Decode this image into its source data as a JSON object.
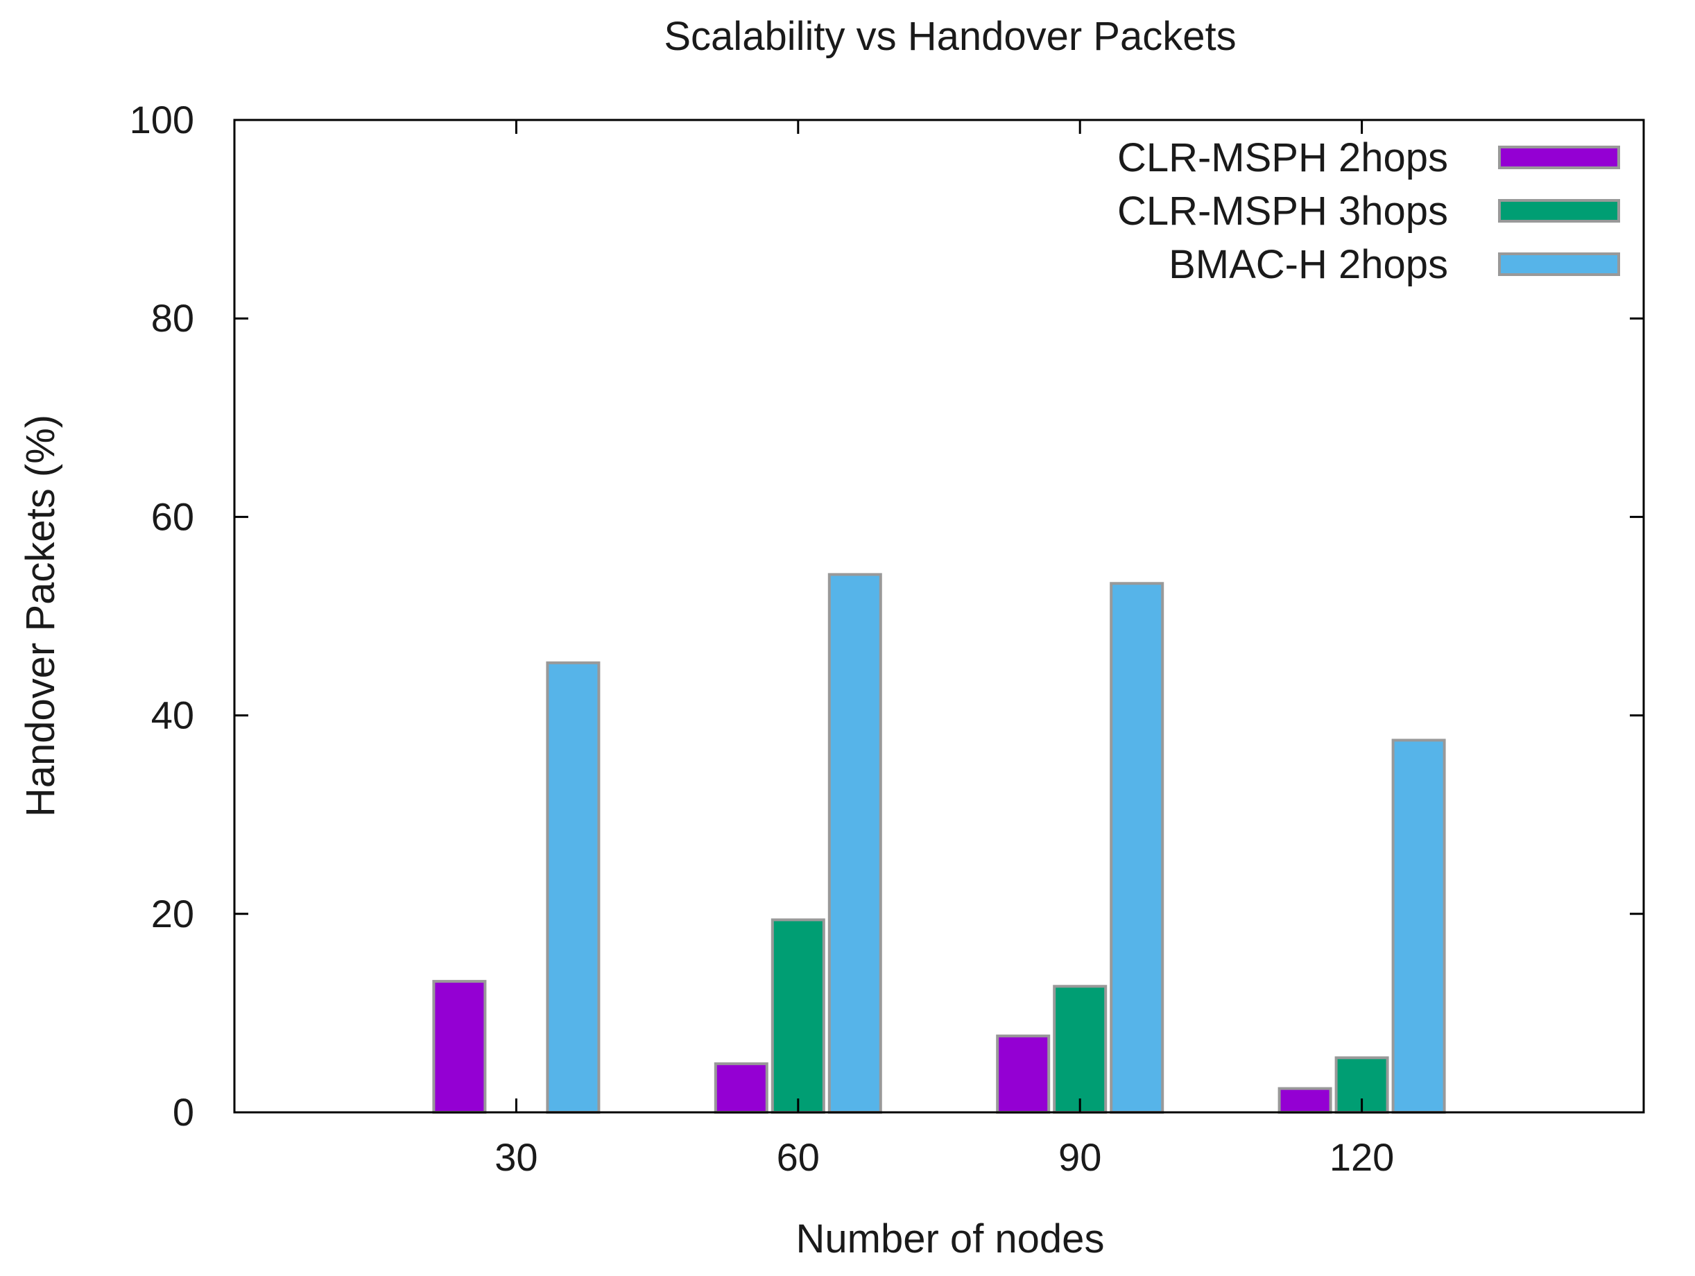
{
  "chart_data": {
    "type": "bar",
    "title": "Scalability vs Handover Packets",
    "xlabel": "Number of nodes",
    "ylabel": "Handover Packets (%)",
    "categories": [
      "30",
      "60",
      "90",
      "120"
    ],
    "ylim": [
      0,
      100
    ],
    "yticks": [
      "0",
      "20",
      "40",
      "60",
      "80",
      "100"
    ],
    "grid": false,
    "legend_position": "top-right",
    "series": [
      {
        "name": "CLR-MSPH 2hops",
        "color": "#9400d3",
        "values": [
          13.2,
          4.9,
          7.7,
          2.4
        ]
      },
      {
        "name": "CLR-MSPH 3hops",
        "color": "#009e73",
        "values": [
          0,
          19.4,
          12.7,
          5.5
        ]
      },
      {
        "name": "BMAC-H 2hops",
        "color": "#56b4e9",
        "values": [
          45.3,
          54.2,
          53.3,
          37.5
        ]
      }
    ]
  }
}
